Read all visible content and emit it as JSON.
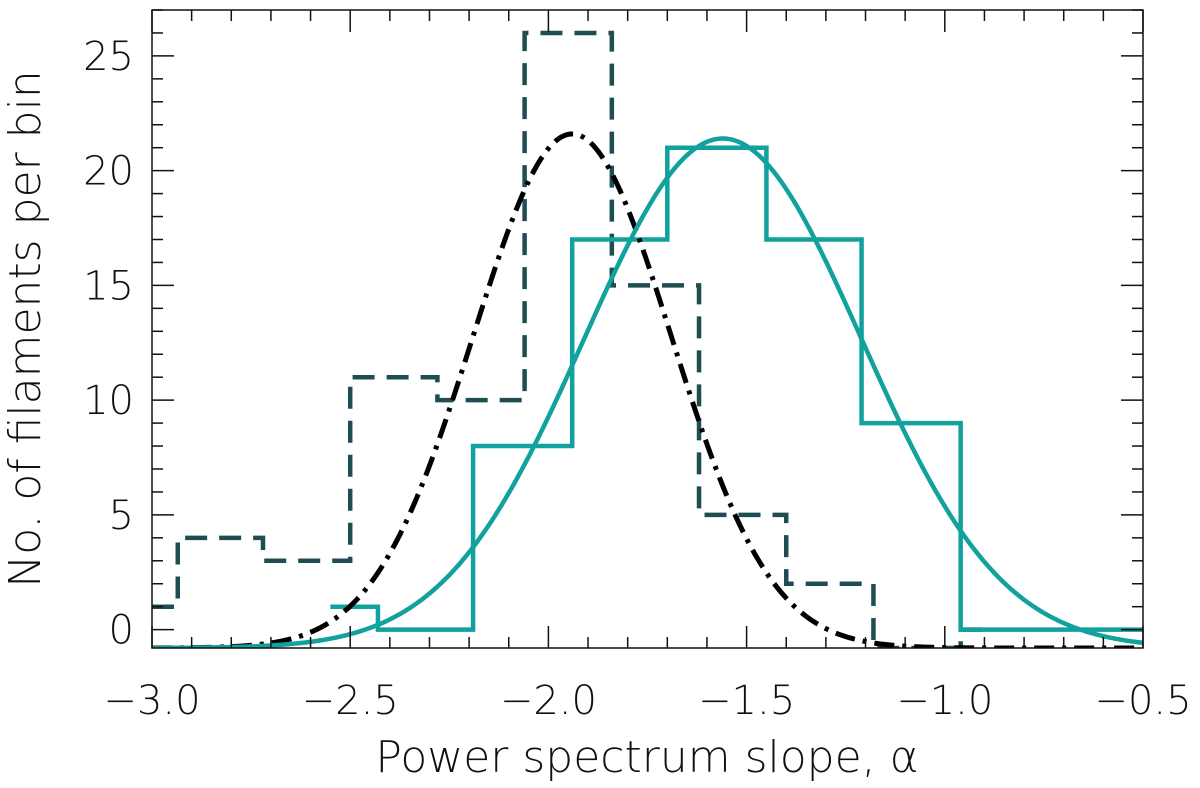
{
  "chart_data": {
    "type": "histogram",
    "title": "",
    "xlabel": "Power spectrum slope, α",
    "ylabel": "No. of filaments per bin",
    "xlim": [
      -3.0,
      -0.5
    ],
    "ylim": [
      -0.8,
      27
    ],
    "x_ticks": [
      -3.0,
      -2.5,
      -2.0,
      -1.5,
      -1.0,
      -0.5
    ],
    "x_tick_labels": [
      "−3.0",
      "−2.5",
      "−2.0",
      "−1.5",
      "−1.0",
      "−0.5"
    ],
    "y_ticks": [
      0,
      5,
      10,
      15,
      20,
      25
    ],
    "y_tick_labels": [
      "0",
      "5",
      "10",
      "15",
      "20",
      "25"
    ],
    "grid": false,
    "legend": "none",
    "series": [
      {
        "style": "dashed-step",
        "color": "#1e4e52",
        "bins": [
          {
            "x0": -3.0,
            "x1": -2.935,
            "count": 1
          },
          {
            "x0": -2.935,
            "x1": -2.72,
            "count": 4
          },
          {
            "x0": -2.72,
            "x1": -2.5,
            "count": 3
          },
          {
            "x0": -2.5,
            "x1": -2.28,
            "count": 11
          },
          {
            "x0": -2.28,
            "x1": -2.06,
            "count": 10
          },
          {
            "x0": -2.06,
            "x1": -1.84,
            "count": 26
          },
          {
            "x0": -1.84,
            "x1": -1.62,
            "count": 15
          },
          {
            "x0": -1.62,
            "x1": -1.4,
            "count": 5
          },
          {
            "x0": -1.4,
            "x1": -1.18,
            "count": 2
          },
          {
            "x0": -1.18,
            "x1": -0.96,
            "count": -0.8
          },
          {
            "x0": -0.96,
            "x1": -0.9,
            "count": 0
          }
        ]
      },
      {
        "style": "solid-step",
        "color": "#11a19e",
        "bins": [
          {
            "x0": -2.55,
            "x1": -2.43,
            "count": 1
          },
          {
            "x0": -2.43,
            "x1": -2.19,
            "count": 0
          },
          {
            "x0": -2.19,
            "x1": -1.94,
            "count": 8
          },
          {
            "x0": -1.94,
            "x1": -1.7,
            "count": 17
          },
          {
            "x0": -1.7,
            "x1": -1.45,
            "count": 21
          },
          {
            "x0": -1.45,
            "x1": -1.21,
            "count": 17
          },
          {
            "x0": -1.21,
            "x1": -0.96,
            "count": 9
          },
          {
            "x0": -0.96,
            "x1": -0.5,
            "count": 0
          }
        ]
      },
      {
        "style": "dash-dot-gaussian",
        "color": "#000000",
        "amplitude": 22.4,
        "mean": -1.94,
        "sigma": 0.25,
        "baseline": -0.8
      },
      {
        "style": "solid-gaussian",
        "color": "#11a19e",
        "amplitude": 22.2,
        "mean": -1.56,
        "sigma": 0.35,
        "baseline": -0.8
      }
    ]
  }
}
